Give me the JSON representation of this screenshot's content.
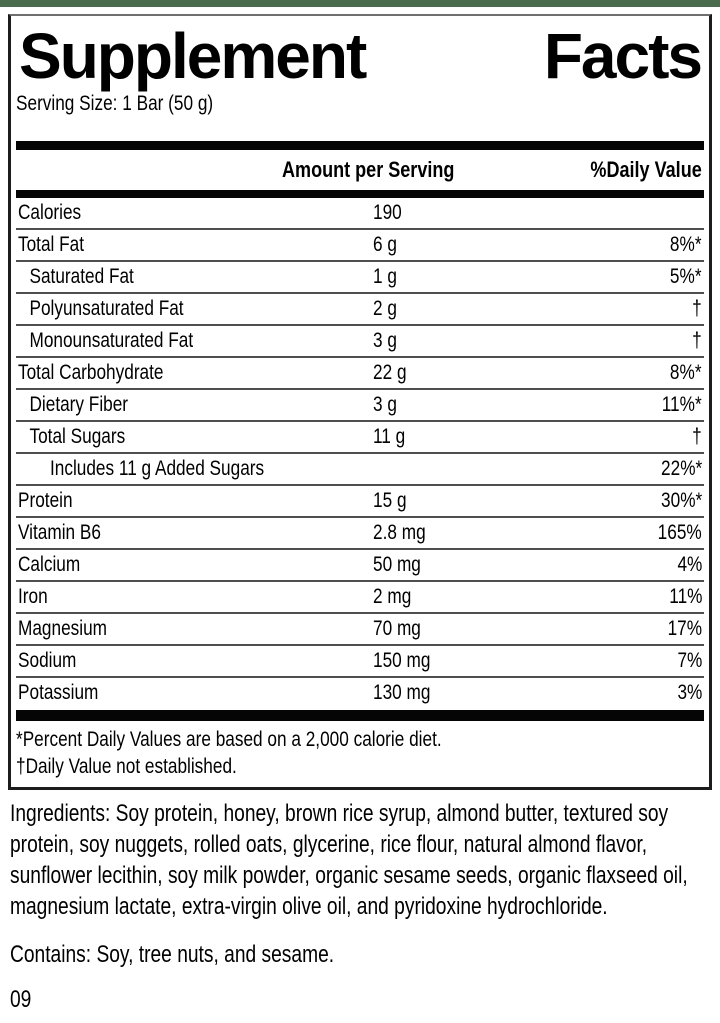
{
  "accent": {
    "top_bar_color": "#4a6b4e"
  },
  "label": {
    "title": "Supplement Facts",
    "serving_size": "Serving Size: 1 Bar (50 g)",
    "columns": {
      "amount": "Amount per Serving",
      "dv": "%Daily Value"
    },
    "rows": [
      {
        "name": "Calories",
        "amount": "190",
        "dv": "",
        "indent": 0
      },
      {
        "name": "Total Fat",
        "amount": "6 g",
        "dv": "8%*",
        "indent": 0
      },
      {
        "name": "Saturated Fat",
        "amount": "1 g",
        "dv": "5%*",
        "indent": 1
      },
      {
        "name": "Polyunsaturated Fat",
        "amount": "2 g",
        "dv": "†",
        "indent": 1
      },
      {
        "name": "Monounsaturated Fat",
        "amount": "3 g",
        "dv": "†",
        "indent": 1
      },
      {
        "name": "Total Carbohydrate",
        "amount": "22 g",
        "dv": "8%*",
        "indent": 0
      },
      {
        "name": "Dietary Fiber",
        "amount": "3 g",
        "dv": "11%*",
        "indent": 1
      },
      {
        "name": "Total Sugars",
        "amount": "11 g",
        "dv": "†",
        "indent": 1
      },
      {
        "name": "Includes 11 g Added Sugars",
        "amount": "",
        "dv": "22%*",
        "indent": 2
      },
      {
        "name": "Protein",
        "amount": "15 g",
        "dv": "30%*",
        "indent": 0
      },
      {
        "name": "Vitamin B6",
        "amount": "2.8 mg",
        "dv": "165%",
        "indent": 0
      },
      {
        "name": "Calcium",
        "amount": "50 mg",
        "dv": "4%",
        "indent": 0
      },
      {
        "name": "Iron",
        "amount": "2 mg",
        "dv": "11%",
        "indent": 0
      },
      {
        "name": "Magnesium",
        "amount": "70 mg",
        "dv": "17%",
        "indent": 0
      },
      {
        "name": "Sodium",
        "amount": "150 mg",
        "dv": "7%",
        "indent": 0
      },
      {
        "name": "Potassium",
        "amount": "130 mg",
        "dv": "3%",
        "indent": 0
      }
    ],
    "footnotes": [
      "*Percent Daily Values are based on a 2,000 calorie diet.",
      "†Daily Value not established."
    ]
  },
  "ingredients": "Ingredients: Soy protein, honey, brown rice syrup, almond butter, textured soy protein, soy nuggets, rolled oats, glycerine, rice flour, natural almond flavor, sunflower lecithin, soy milk powder, organic sesame seeds, organic flaxseed oil, magnesium lactate, extra-virgin olive oil, and pyridoxine hydrochloride.",
  "contains": "Contains: Soy, tree nuts, and sesame.",
  "page_code": "09"
}
